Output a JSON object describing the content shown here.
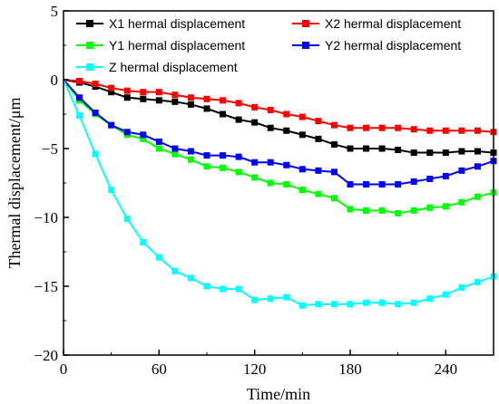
{
  "chart_data": {
    "type": "line",
    "title": "",
    "xlabel": "Time/min",
    "ylabel": "Thermal displacement/μm",
    "xlim": [
      0,
      270
    ],
    "ylim": [
      -20,
      5
    ],
    "xticks": [
      0,
      60,
      120,
      180,
      240
    ],
    "yticks": [
      5,
      0,
      -5,
      -10,
      -15,
      -20
    ],
    "grid": false,
    "legend_position": "top",
    "series": [
      {
        "name": "X1 hermal displacement",
        "color": "#000000",
        "marker": "square",
        "x": [
          0,
          10,
          20,
          30,
          40,
          50,
          60,
          70,
          80,
          90,
          100,
          110,
          120,
          130,
          140,
          150,
          160,
          170,
          180,
          190,
          200,
          210,
          220,
          230,
          240,
          250,
          260,
          270
        ],
        "y": [
          0,
          -0.2,
          -0.5,
          -0.9,
          -1.3,
          -1.4,
          -1.5,
          -1.6,
          -1.8,
          -2.1,
          -2.5,
          -2.9,
          -3.1,
          -3.5,
          -3.7,
          -4.0,
          -4.3,
          -4.7,
          -5.0,
          -5.0,
          -5.0,
          -5.1,
          -5.3,
          -5.3,
          -5.3,
          -5.2,
          -5.2,
          -5.3
        ]
      },
      {
        "name": "X2 hermal displacement",
        "color": "#ff0000",
        "marker": "square",
        "x": [
          0,
          10,
          20,
          30,
          40,
          50,
          60,
          70,
          80,
          90,
          100,
          110,
          120,
          130,
          140,
          150,
          160,
          170,
          180,
          190,
          200,
          210,
          220,
          230,
          240,
          250,
          260,
          270
        ],
        "y": [
          0,
          -0.1,
          -0.3,
          -0.6,
          -0.8,
          -0.9,
          -0.9,
          -1.1,
          -1.3,
          -1.4,
          -1.5,
          -1.7,
          -2.0,
          -2.2,
          -2.5,
          -2.7,
          -3.0,
          -3.3,
          -3.5,
          -3.5,
          -3.5,
          -3.5,
          -3.6,
          -3.7,
          -3.7,
          -3.7,
          -3.7,
          -3.8
        ]
      },
      {
        "name": "Y1 hermal displacement",
        "color": "#00ff00",
        "marker": "square",
        "x": [
          0,
          10,
          20,
          30,
          40,
          50,
          60,
          70,
          80,
          90,
          100,
          110,
          120,
          130,
          140,
          150,
          160,
          170,
          180,
          190,
          200,
          210,
          220,
          230,
          240,
          250,
          260,
          270
        ],
        "y": [
          0,
          -1.5,
          -2.5,
          -3.3,
          -4.0,
          -4.3,
          -5.0,
          -5.4,
          -5.8,
          -6.3,
          -6.4,
          -6.7,
          -7.1,
          -7.5,
          -7.6,
          -8.0,
          -8.3,
          -8.6,
          -9.4,
          -9.5,
          -9.5,
          -9.7,
          -9.5,
          -9.3,
          -9.2,
          -8.9,
          -8.5,
          -8.2
        ]
      },
      {
        "name": "Y2 hermal displacement",
        "color": "#0000ff",
        "marker": "square",
        "x": [
          0,
          10,
          20,
          30,
          40,
          50,
          60,
          70,
          80,
          90,
          100,
          110,
          120,
          130,
          140,
          150,
          160,
          170,
          180,
          190,
          200,
          210,
          220,
          230,
          240,
          250,
          260,
          270
        ],
        "y": [
          0,
          -1.3,
          -2.4,
          -3.3,
          -3.8,
          -4.0,
          -4.5,
          -5.0,
          -5.2,
          -5.5,
          -5.5,
          -5.6,
          -6.0,
          -6.0,
          -6.2,
          -6.5,
          -6.6,
          -6.7,
          -7.6,
          -7.6,
          -7.6,
          -7.6,
          -7.4,
          -7.2,
          -7.0,
          -6.6,
          -6.3,
          -5.9
        ]
      },
      {
        "name": "Z hermal displacement",
        "color": "#00ffff",
        "marker": "square",
        "x": [
          0,
          10,
          20,
          30,
          40,
          50,
          60,
          70,
          80,
          90,
          100,
          110,
          120,
          130,
          140,
          150,
          160,
          170,
          180,
          190,
          200,
          210,
          220,
          230,
          240,
          250,
          260,
          270
        ],
        "y": [
          0,
          -2.6,
          -5.4,
          -8.0,
          -10.1,
          -11.8,
          -12.9,
          -13.9,
          -14.4,
          -15.0,
          -15.2,
          -15.2,
          -16.0,
          -15.9,
          -15.8,
          -16.4,
          -16.3,
          -16.3,
          -16.3,
          -16.2,
          -16.2,
          -16.3,
          -16.2,
          -15.9,
          -15.6,
          -15.1,
          -14.7,
          -14.3
        ]
      }
    ]
  }
}
